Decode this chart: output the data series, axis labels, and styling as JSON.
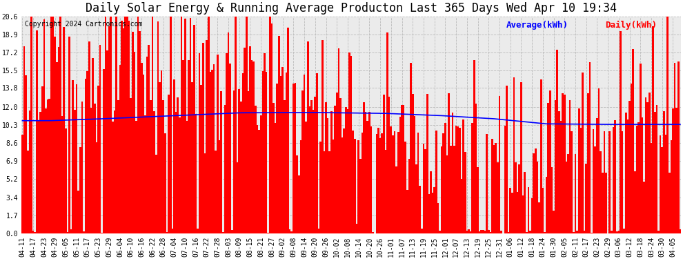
{
  "title": "Daily Solar Energy & Running Average Producton Last 365 Days Wed Apr 10 19:34",
  "copyright": "Copyright 2024 Cartronics.com",
  "legend_average": "Average(kWh)",
  "legend_daily": "Daily(kWh)",
  "bar_color": "#ff0000",
  "average_color": "#0000ff",
  "background_color": "#ffffff",
  "plot_bg_color": "#ebebeb",
  "grid_color": "#bbbbbb",
  "yticks": [
    0.0,
    1.7,
    3.4,
    5.2,
    6.9,
    8.6,
    10.3,
    12.0,
    13.8,
    15.5,
    17.2,
    18.9,
    20.6
  ],
  "ylim": [
    0.0,
    20.6
  ],
  "title_fontsize": 12,
  "copyright_fontsize": 7,
  "legend_fontsize": 9,
  "tick_fontsize": 7
}
